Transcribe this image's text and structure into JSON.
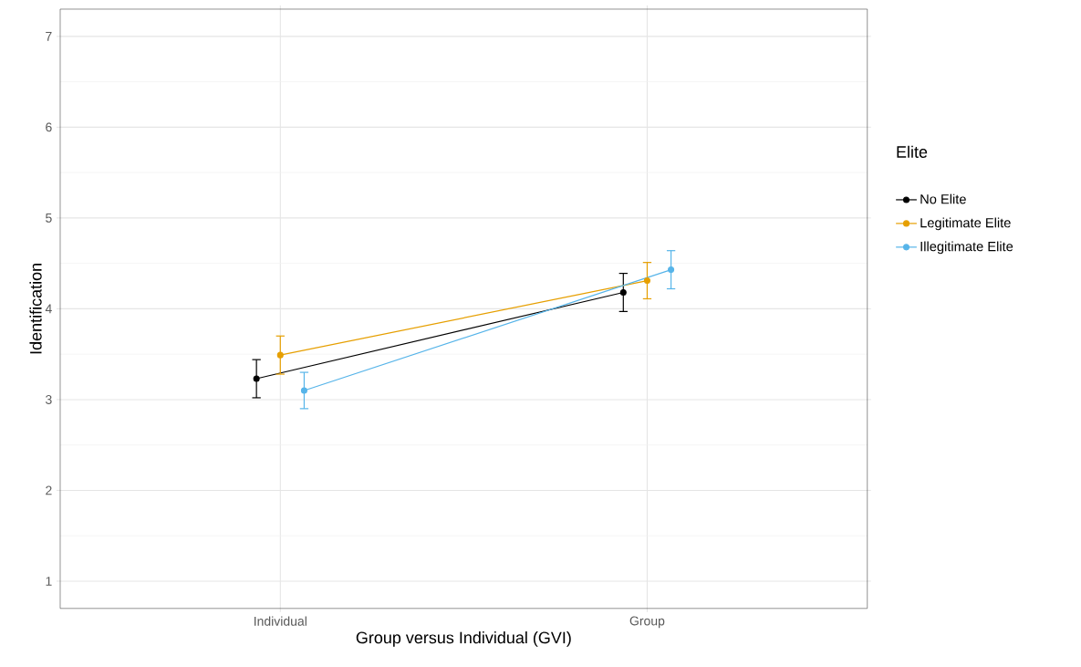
{
  "chart_data": {
    "type": "line",
    "xlabel": "Group versus Individual (GVI)",
    "ylabel": "Identification",
    "legend_title": "Elite",
    "categories": [
      "Individual",
      "Group"
    ],
    "series": [
      {
        "name": "No Elite",
        "color": "#000000",
        "values": [
          3.23,
          4.18
        ],
        "errors": [
          0.21,
          0.21
        ]
      },
      {
        "name": "Legitimate Elite",
        "color": "#e69f00",
        "values": [
          3.49,
          4.31
        ],
        "errors": [
          0.21,
          0.2
        ]
      },
      {
        "name": "Illegitimate Elite",
        "color": "#56b4e9",
        "values": [
          3.1,
          4.43
        ],
        "errors": [
          0.2,
          0.21
        ]
      }
    ],
    "ylim": [
      0.7,
      7.3
    ],
    "yticks": [
      1,
      2,
      3,
      4,
      5,
      6,
      7
    ],
    "grid": true,
    "legend": "right",
    "marker": "circle",
    "line_style": "solid"
  }
}
